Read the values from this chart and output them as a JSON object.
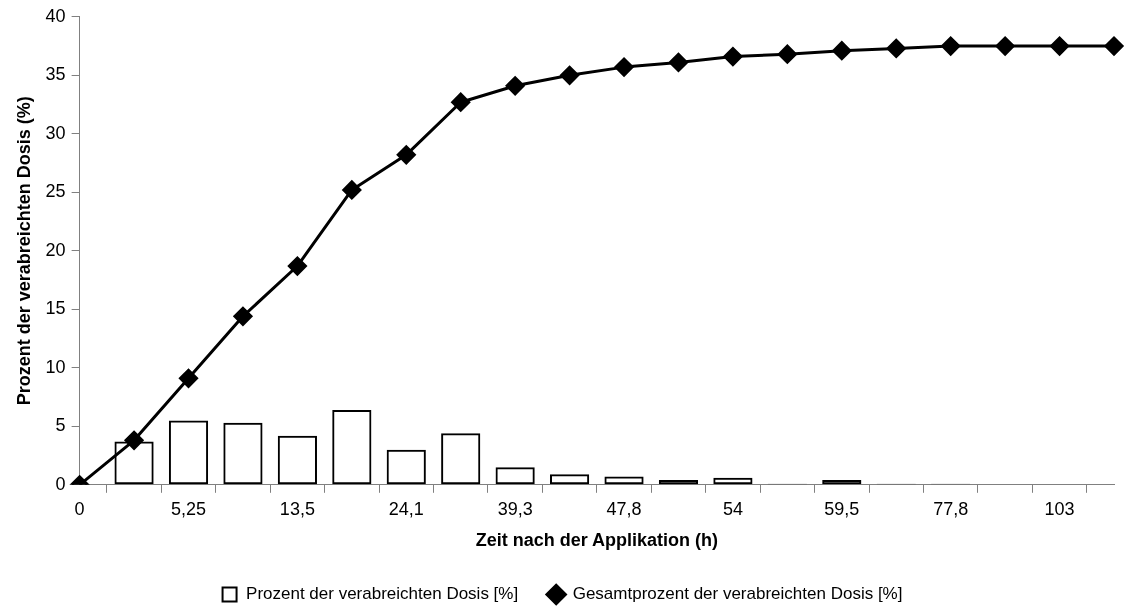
{
  "chart_data": {
    "type": "bar",
    "xlabel": "Zeit nach der Applikation (h)",
    "ylabel": "Prozent der verabreichten Dosis (%)",
    "categories": [
      "0",
      null,
      "5,25",
      null,
      "13,5",
      null,
      "24,1",
      null,
      "39,3",
      null,
      "47,8",
      null,
      "54",
      null,
      "59,5",
      null,
      "77,8",
      null,
      "103",
      null
    ],
    "series": [
      {
        "name": "Prozent der verabreichten Dosis [%]",
        "color": "#000000",
        "values": [
          0,
          3.7,
          5.5,
          5.3,
          4.2,
          6.4,
          3.0,
          4.4,
          1.5,
          0.9,
          0.7,
          0.4,
          0.6,
          0.1,
          0.4,
          0.1,
          0.1,
          null,
          null,
          null
        ]
      },
      {
        "name": "Gesamtprozent der verabreichten Dosis [%]",
        "type": "line",
        "color": "#000000",
        "marker": "diamond",
        "values": [
          0,
          3.8,
          9.1,
          14.4,
          18.7,
          25.2,
          28.2,
          32.7,
          34.1,
          35.0,
          35.7,
          36.1,
          36.6,
          36.8,
          37.1,
          37.3,
          37.5,
          37.5,
          37.5,
          37.5
        ]
      }
    ],
    "ylim": [
      0,
      40
    ],
    "yticks": [
      0,
      5,
      10,
      15,
      20,
      25,
      30,
      35,
      40
    ],
    "grid": false,
    "legend": "bottom"
  }
}
